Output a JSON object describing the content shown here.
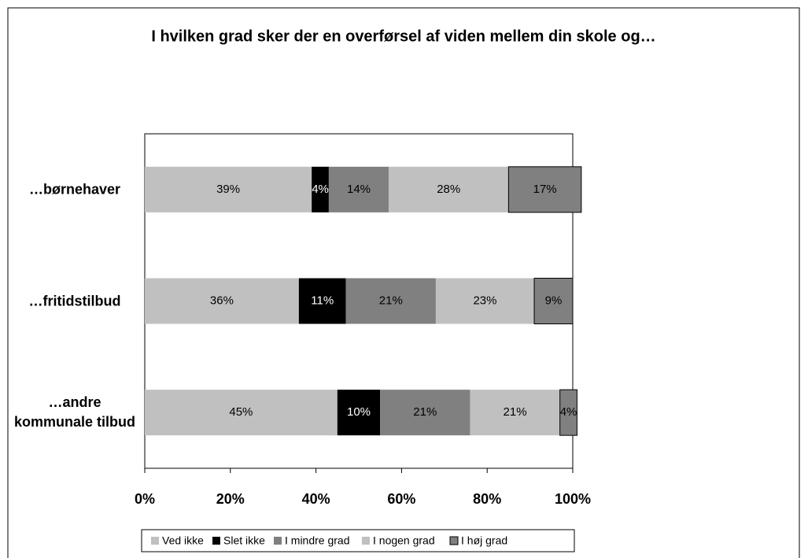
{
  "chart_data": {
    "type": "bar",
    "orientation": "horizontal",
    "stacked": true,
    "title": "I hvilken grad sker der en overførsel af viden mellem din skole og…",
    "categories": [
      "…børnehaver",
      "…fritidstilbud",
      "…andre kommunale tilbud"
    ],
    "series": [
      {
        "name": "Ved ikke",
        "color": "#c0c0c0",
        "values": [
          39,
          36,
          45
        ],
        "value_labels": [
          "39%",
          "36%",
          "45%"
        ]
      },
      {
        "name": "Slet ikke",
        "color": "#000000",
        "values": [
          4,
          11,
          10
        ],
        "value_labels": [
          "4%",
          "11%",
          "10%"
        ]
      },
      {
        "name": "I mindre grad",
        "color": "#808080",
        "values": [
          14,
          21,
          21
        ],
        "value_labels": [
          "14%",
          "21%",
          "21%"
        ]
      },
      {
        "name": "I nogen grad",
        "color": "#c0c0c0",
        "values": [
          28,
          23,
          21
        ],
        "value_labels": [
          "28%",
          "23%",
          "21%"
        ]
      },
      {
        "name": "I høj grad",
        "color": "#808080",
        "values": [
          17,
          9,
          4
        ],
        "value_labels": [
          "17%",
          "9%",
          "4%"
        ]
      }
    ],
    "xlim": [
      0,
      100
    ],
    "xticks": [
      {
        "value": 0,
        "label": "0%"
      },
      {
        "value": 20,
        "label": "20%"
      },
      {
        "value": 40,
        "label": "40%"
      },
      {
        "value": 60,
        "label": "60%"
      },
      {
        "value": 80,
        "label": "80%"
      },
      {
        "value": 100,
        "label": "100%"
      }
    ],
    "legend": "bottom"
  }
}
